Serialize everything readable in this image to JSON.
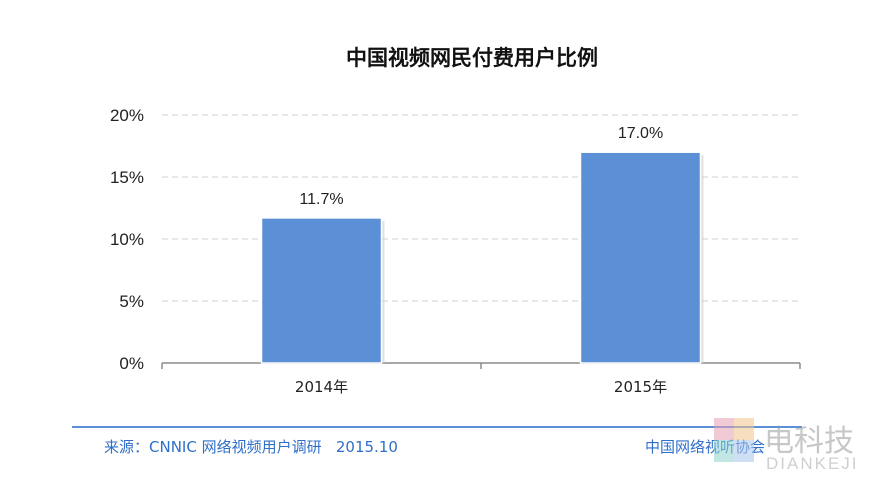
{
  "chart_data": {
    "type": "bar",
    "title": "中国视频网民付费用户比例",
    "categories": [
      "2014年",
      "2015年"
    ],
    "values": [
      11.7,
      17.0
    ],
    "data_labels": [
      "11.7%",
      "17.0%"
    ],
    "ylim": [
      0,
      20
    ],
    "yticks": [
      0,
      5,
      10,
      15,
      20
    ],
    "ytick_labels": [
      "0%",
      "5%",
      "10%",
      "15%",
      "20%"
    ],
    "grid": true,
    "bar_color": "#5b8fd6"
  },
  "footer": {
    "source": "来源：CNNIC 网络视频用户调研   2015.10",
    "organization": "中国网络视听协会",
    "accent_color": "#2f6fc9"
  },
  "watermark": {
    "chinese": "电科技",
    "pinyin": "DIANKEJI"
  }
}
